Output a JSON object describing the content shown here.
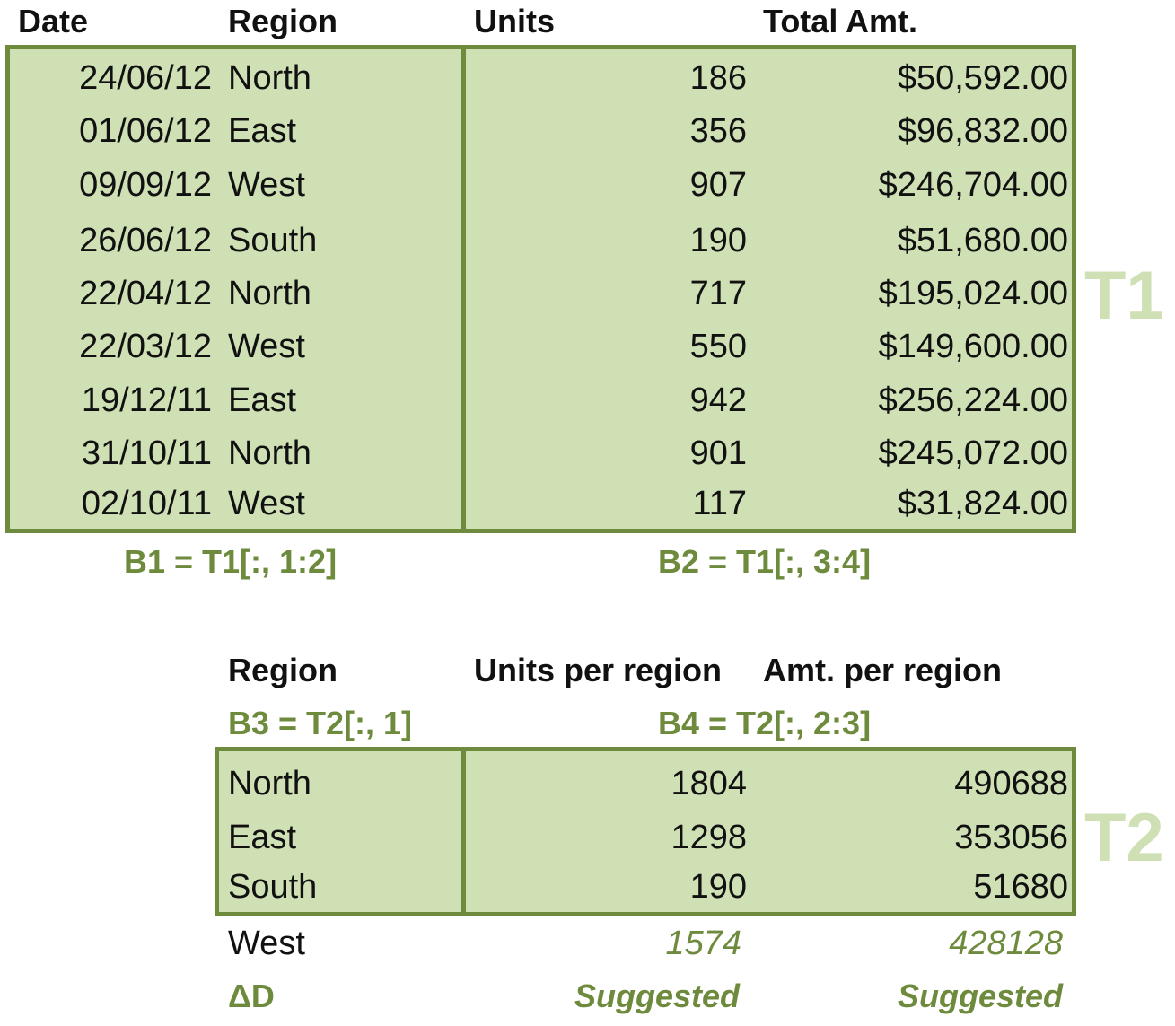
{
  "t1": {
    "headers": {
      "date": "Date",
      "region": "Region",
      "units": "Units",
      "amount": "Total Amt."
    },
    "rows": [
      {
        "date": "24/06/12",
        "region": "North",
        "units": "186",
        "amount": "$50,592.00"
      },
      {
        "date": "01/06/12",
        "region": "East",
        "units": "356",
        "amount": "$96,832.00"
      },
      {
        "date": "09/09/12",
        "region": "West",
        "units": "907",
        "amount": "$246,704.00"
      },
      {
        "date": "26/06/12",
        "region": "South",
        "units": "190",
        "amount": "$51,680.00"
      },
      {
        "date": "22/04/12",
        "region": "North",
        "units": "717",
        "amount": "$195,024.00"
      },
      {
        "date": "22/03/12",
        "region": "West",
        "units": "550",
        "amount": "$149,600.00"
      },
      {
        "date": "19/12/11",
        "region": "East",
        "units": "942",
        "amount": "$256,224.00"
      },
      {
        "date": "31/10/11",
        "region": "North",
        "units": "901",
        "amount": "$245,072.00"
      },
      {
        "date": "02/10/11",
        "region": "West",
        "units": "117",
        "amount": "$31,824.00"
      }
    ],
    "tag": "T1",
    "b1_label": "B1 = T1[:, 1:2]",
    "b2_label": "B2 = T1[:, 3:4]"
  },
  "t2": {
    "headers": {
      "region": "Region",
      "units": "Units per region",
      "amount": "Amt. per region"
    },
    "b3_label": "B3 = T2[:, 1]",
    "b4_label": "B4 = T2[:, 2:3]",
    "rows": [
      {
        "region": "North",
        "units": "1804",
        "amount": "490688"
      },
      {
        "region": "East",
        "units": "1298",
        "amount": "353056"
      },
      {
        "region": "South",
        "units": "190",
        "amount": "51680"
      }
    ],
    "tag": "T2",
    "extra_row": {
      "region": "West",
      "units": "1574",
      "amount": "428128"
    },
    "delta_label": "ΔD",
    "suggested_units": "Suggested",
    "suggested_amount": "Suggested"
  },
  "colors": {
    "box_fill": "#cfe0b5",
    "box_border": "#6e8b3d",
    "label_green": "#6e8b3d",
    "tag_green": "#cfe0b5"
  }
}
